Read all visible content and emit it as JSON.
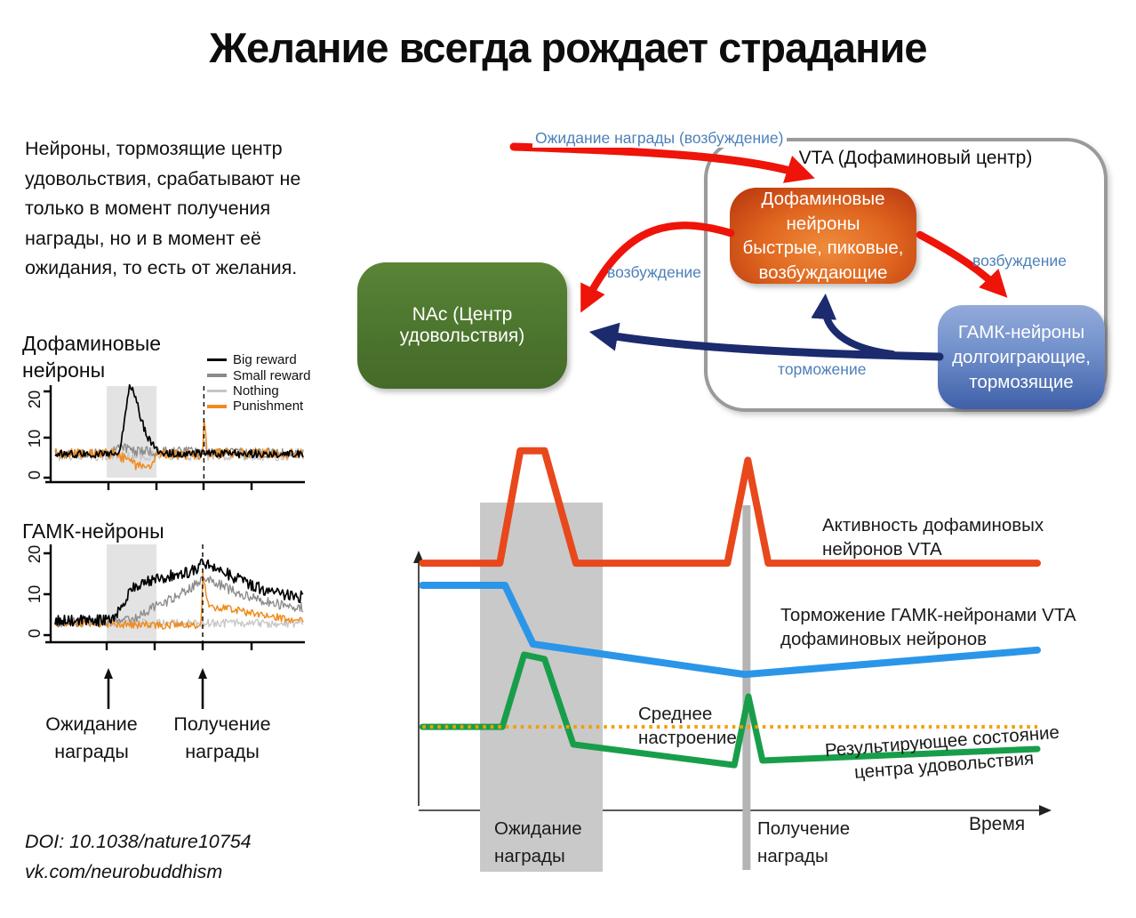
{
  "title": "Желание всегда рождает страдание",
  "intro": "Нейроны, тормозящие центр\nудовольствия, срабатывают не\nтолько в момент получения\nнаграды, но и в момент её\nожидания, то есть от желания.",
  "footer": {
    "doi": "DOI: 10.1038/nature10754",
    "link": "vk.com/neurobuddhism"
  },
  "diagram": {
    "vta_title": "VTA (Дофаминовый центр)",
    "input_label": "Ожидание награды (возбуждение)",
    "dopamine_box": "Дофаминовые нейроны\nбыстрые, пиковые,\nвозбуждающие",
    "gaba_box": "ГАМК-нейроны\nдолгоиграющие,\nтормозящие",
    "nac_box": "NAc (Центр удовольствия)",
    "excitation_label_left": "возбуждение",
    "excitation_label_right": "возбуждение",
    "inhibition_label": "торможение"
  },
  "colors": {
    "excitation_arrow": "#ee1409",
    "inhibition_arrow": "#1b2b6e",
    "label_blue": "#4d80b8",
    "vta_border": "#9a9a9a",
    "dopamine_box": "#cf4d16",
    "gaba_box": "#5577bc",
    "nac_box": "#4c752e",
    "dopamine_line": "#e8481c",
    "gaba_line": "#2b96e8",
    "pleasure_line": "#189e4a",
    "mood_dotted": "#f59d00",
    "band_gray": "#c9c9c9",
    "mini_band_gray": "#e3e3e3"
  },
  "chart_data": [
    {
      "id": "dopamine_neurons_recording",
      "type": "line",
      "title": "Дофаминовые\nнейроны",
      "ylim": [
        0,
        22
      ],
      "yticks": [
        0,
        10,
        20
      ],
      "ytick_labels": [
        "0",
        "10",
        "20"
      ],
      "x_range": [
        0,
        100
      ],
      "shaded_region": [
        20.8,
        40.9
      ],
      "event_line_x": 60,
      "legend": [
        {
          "label": "Big reward",
          "color": "#000000"
        },
        {
          "label": "Small reward",
          "color": "#8a8a8a"
        },
        {
          "label": "Nothing",
          "color": "#c6c6c6"
        },
        {
          "label": "Punishment",
          "color": "#f08c1e"
        }
      ],
      "series": [
        {
          "name": "Nothing",
          "color": "#c6c6c6",
          "width": 1.3,
          "noise": 1.1,
          "anchors": [
            [
              0,
              5
            ],
            [
              57,
              5
            ],
            [
              58.5,
              5
            ],
            [
              60,
              8.5
            ],
            [
              61.5,
              5
            ],
            [
              100,
              5
            ]
          ]
        },
        {
          "name": "Small reward",
          "color": "#8a8a8a",
          "width": 1.3,
          "noise": 1.1,
          "anchors": [
            [
              0,
              5.5
            ],
            [
              22,
              5.5
            ],
            [
              27,
              7.5
            ],
            [
              31,
              6
            ],
            [
              60,
              6
            ],
            [
              100,
              5.5
            ]
          ]
        },
        {
          "name": "Punishment",
          "color": "#f08c1e",
          "width": 1.5,
          "noise": 1.2,
          "anchors": [
            [
              0,
              5.5
            ],
            [
              24,
              5.5
            ],
            [
              30,
              3.5
            ],
            [
              34,
              2.5
            ],
            [
              38,
              3
            ],
            [
              42,
              5.5
            ],
            [
              58,
              5.2
            ],
            [
              59.5,
              5.2
            ],
            [
              60,
              14
            ],
            [
              61.5,
              5.5
            ],
            [
              100,
              5.5
            ]
          ]
        },
        {
          "name": "Big reward",
          "color": "#000000",
          "width": 1.7,
          "noise": 0.9,
          "anchors": [
            [
              0,
              5.5
            ],
            [
              24,
              5.5
            ],
            [
              26,
              6
            ],
            [
              28,
              13
            ],
            [
              30,
              21
            ],
            [
              32,
              19.5
            ],
            [
              34,
              15
            ],
            [
              36,
              11
            ],
            [
              38,
              8.5
            ],
            [
              41,
              6.5
            ],
            [
              44,
              5.5
            ],
            [
              100,
              5.5
            ]
          ]
        }
      ]
    },
    {
      "id": "gaba_neurons_recording",
      "type": "line",
      "title": "ГАМК-нейроны",
      "ylim": [
        0,
        21
      ],
      "yticks": [
        0,
        10,
        20
      ],
      "ytick_labels": [
        "0",
        "10",
        "20"
      ],
      "x_range": [
        0,
        100
      ],
      "shaded_region": [
        20.8,
        40.9
      ],
      "event_line_x": 59.5,
      "annotations": {
        "anticipation": {
          "x": 21.5,
          "label": "Ожидание награды"
        },
        "reward": {
          "x": 59.5,
          "label": "Получение награды"
        }
      },
      "series": [
        {
          "name": "Nothing",
          "color": "#c6c6c6",
          "width": 1.3,
          "noise": 1.0,
          "anchors": [
            [
              0,
              3.4
            ],
            [
              100,
              3.2
            ]
          ]
        },
        {
          "name": "Small reward",
          "color": "#8a8a8a",
          "width": 1.3,
          "noise": 1.2,
          "anchors": [
            [
              0,
              3.5
            ],
            [
              24,
              3.5
            ],
            [
              32,
              4.5
            ],
            [
              40,
              7
            ],
            [
              50,
              10
            ],
            [
              58,
              13
            ],
            [
              61,
              14.5
            ],
            [
              68,
              12
            ],
            [
              78,
              9.5
            ],
            [
              88,
              8
            ],
            [
              100,
              7
            ]
          ]
        },
        {
          "name": "Punishment",
          "color": "#f08c1e",
          "width": 1.5,
          "noise": 0.9,
          "anchors": [
            [
              0,
              3.5
            ],
            [
              30,
              3
            ],
            [
              45,
              2.8
            ],
            [
              58,
              2.8
            ],
            [
              59,
              2.8
            ],
            [
              59.5,
              15
            ],
            [
              61.5,
              8
            ],
            [
              64,
              7
            ],
            [
              72,
              6.5
            ],
            [
              85,
              5
            ],
            [
              100,
              4
            ]
          ]
        },
        {
          "name": "Big reward",
          "color": "#000000",
          "width": 1.7,
          "noise": 1.4,
          "anchors": [
            [
              0,
              4
            ],
            [
              21,
              4
            ],
            [
              24,
              4.5
            ],
            [
              27,
              8
            ],
            [
              31,
              11.5
            ],
            [
              36,
              13
            ],
            [
              42,
              14
            ],
            [
              50,
              15
            ],
            [
              57,
              16
            ],
            [
              60,
              18
            ],
            [
              63,
              16.5
            ],
            [
              68,
              15.5
            ],
            [
              75,
              13.5
            ],
            [
              85,
              11
            ],
            [
              95,
              10
            ],
            [
              100,
              9.5
            ]
          ]
        }
      ]
    },
    {
      "id": "vta_schematic",
      "type": "line",
      "xlabel": "Время",
      "lines": [
        {
          "name": "Активность дофаминовых\nнейронов VTA",
          "color": "#e8481c",
          "width": 8,
          "points": [
            [
              0.6,
              66
            ],
            [
              12.7,
              66
            ],
            [
              15.9,
              96
            ],
            [
              19.7,
              96
            ],
            [
              24.6,
              66
            ],
            [
              48.3,
              66
            ],
            [
              51.5,
              93.5
            ],
            [
              54.7,
              66
            ],
            [
              96.8,
              66
            ]
          ]
        },
        {
          "name": "Торможение ГАМК-нейронами VTA\nдофаминовых нейронов",
          "color": "#2b96e8",
          "width": 8,
          "points": [
            [
              0.6,
              60.1
            ],
            [
              13.5,
              60.1
            ],
            [
              17.9,
              44.4
            ],
            [
              51,
              36.3
            ],
            [
              96.8,
              42.8
            ]
          ]
        },
        {
          "name": "Результирующее состояние\nцентра удовольствия",
          "color": "#189e4a",
          "width": 7,
          "points": [
            [
              0.6,
              22.3
            ],
            [
              13.1,
              22.3
            ],
            [
              16.5,
              41.6
            ],
            [
              19.7,
              40.4
            ],
            [
              24.2,
              17.6
            ],
            [
              49.4,
              12.1
            ],
            [
              51.6,
              30.4
            ],
            [
              53.8,
              13.3
            ],
            [
              96.8,
              16.4
            ]
          ]
        }
      ],
      "dotted_baseline": {
        "label": "Среднее\nнастроение",
        "color": "#f59d00",
        "y": 22.3,
        "x": [
          0.6,
          96.8
        ]
      },
      "shaded_band": {
        "x": [
          9.6,
          28.8
        ],
        "label": "Ожидание\nнаграды"
      },
      "event_bar": {
        "x": 51.3,
        "label": "Получение\nнаграды"
      }
    }
  ]
}
